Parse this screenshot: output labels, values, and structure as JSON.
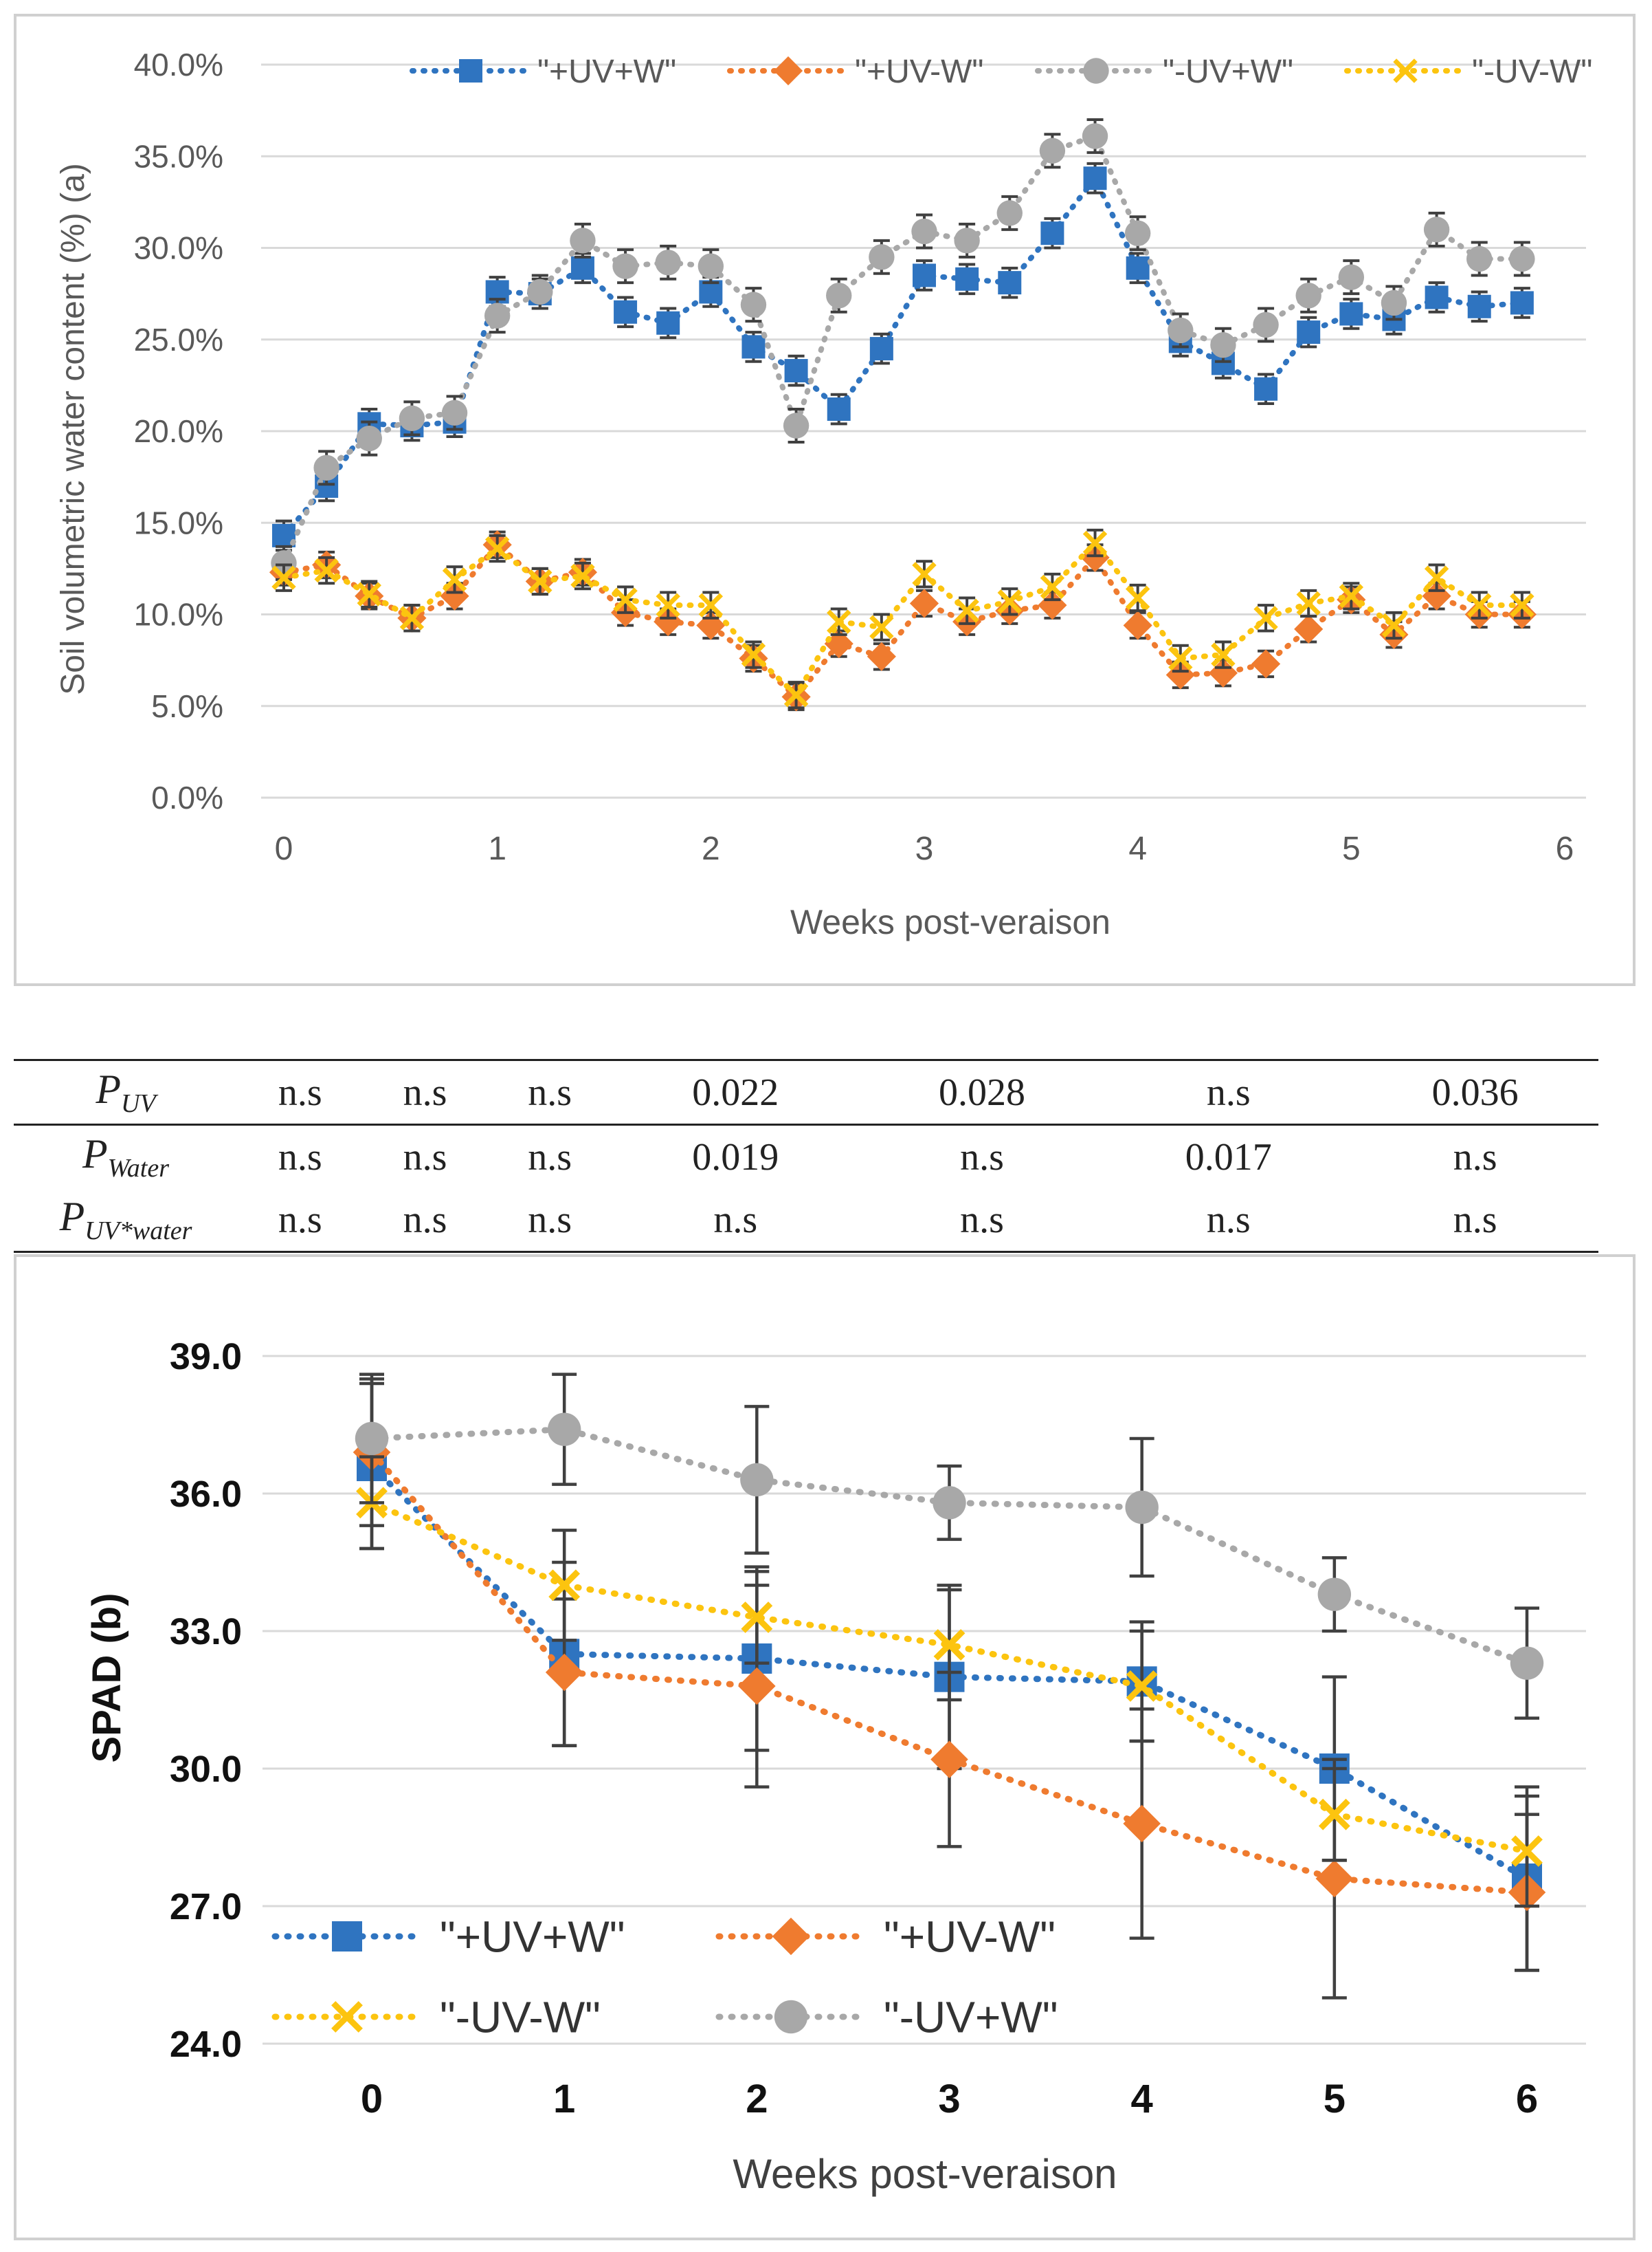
{
  "marker_colors": {
    "+UV+W": "#2f74c0",
    "+UV-W": "#ef7b2f",
    "-UV+W": "#a8a8a8",
    "-UV-W": "#fcc40f"
  },
  "chart_data": [
    {
      "type": "line",
      "title": "",
      "xlabel": "Weeks post-veraison",
      "ylabel": "Soil volumetric water content (%) (a)",
      "xlim": [
        0,
        6
      ],
      "ylim": [
        0,
        40
      ],
      "x_ticks": [
        "0",
        "1",
        "2",
        "3",
        "4",
        "5",
        "6"
      ],
      "y_ticks": [
        "0.0%",
        "5.0%",
        "10.0%",
        "15.0%",
        "20.0%",
        "25.0%",
        "30.0%",
        "35.0%",
        "40.0%"
      ],
      "grid": true,
      "legend": [
        "\"+UV+W\"",
        "\"+UV-W\"",
        "\"-UV+W\"",
        "\"-UV-W\""
      ],
      "legend_position": "top",
      "x": [
        0,
        0.2,
        0.4,
        0.6,
        0.8,
        1.0,
        1.2,
        1.4,
        1.6,
        1.8,
        2.0,
        2.2,
        2.4,
        2.6,
        2.8,
        3.0,
        3.2,
        3.4,
        3.6,
        3.8,
        4.0,
        4.2,
        4.4,
        4.6,
        4.8,
        5.0,
        5.2,
        5.4,
        5.6,
        5.8
      ],
      "series": [
        {
          "name": "+UV+W",
          "marker": "square",
          "values": [
            14.3,
            17.0,
            20.4,
            20.3,
            20.5,
            27.6,
            27.5,
            28.9,
            26.5,
            25.9,
            27.6,
            24.6,
            23.3,
            21.2,
            24.5,
            28.5,
            28.3,
            28.1,
            30.8,
            33.8,
            28.9,
            24.9,
            23.7,
            22.3,
            25.4,
            26.4,
            26.1,
            27.3,
            26.8,
            27.0
          ],
          "err": [
            0.8,
            0.8,
            0.8,
            0.8,
            0.8,
            0.8,
            0.8,
            0.8,
            0.8,
            0.8,
            0.8,
            0.8,
            0.8,
            0.8,
            0.8,
            0.8,
            0.8,
            0.8,
            0.8,
            0.8,
            0.8,
            0.8,
            0.8,
            0.8,
            0.8,
            0.8,
            0.8,
            0.8,
            0.8,
            0.8
          ]
        },
        {
          "name": "+UV-W",
          "marker": "diamond",
          "values": [
            12.3,
            12.7,
            11.0,
            9.8,
            11.0,
            13.8,
            11.8,
            12.3,
            10.1,
            9.6,
            9.4,
            7.6,
            5.5,
            8.4,
            7.7,
            10.6,
            9.6,
            10.2,
            10.5,
            13.1,
            9.4,
            6.7,
            6.8,
            7.3,
            9.2,
            10.8,
            8.9,
            11.0,
            10.0,
            10.0
          ],
          "err": [
            0.7,
            0.7,
            0.7,
            0.7,
            0.7,
            0.7,
            0.7,
            0.7,
            0.7,
            0.7,
            0.7,
            0.7,
            0.7,
            0.7,
            0.7,
            0.7,
            0.7,
            0.7,
            0.7,
            0.7,
            0.7,
            0.7,
            0.7,
            0.7,
            0.7,
            0.7,
            0.7,
            0.7,
            0.7,
            0.7
          ]
        },
        {
          "name": "-UV+W",
          "marker": "circle",
          "values": [
            12.8,
            18.0,
            19.6,
            20.7,
            21.0,
            26.3,
            27.6,
            30.4,
            29.0,
            29.2,
            29.0,
            26.9,
            20.3,
            27.4,
            29.5,
            30.9,
            30.4,
            31.9,
            35.3,
            36.1,
            30.8,
            25.5,
            24.7,
            25.8,
            27.4,
            28.4,
            27.0,
            31.0,
            29.4,
            29.4
          ],
          "err": [
            0.9,
            0.9,
            0.9,
            0.9,
            0.9,
            0.9,
            0.9,
            0.9,
            0.9,
            0.9,
            0.9,
            0.9,
            0.9,
            0.9,
            0.9,
            0.9,
            0.9,
            0.9,
            0.9,
            0.9,
            0.9,
            0.9,
            0.9,
            0.9,
            0.9,
            0.9,
            0.9,
            0.9,
            0.9,
            0.9
          ]
        },
        {
          "name": "-UV-W",
          "marker": "x",
          "values": [
            12.0,
            12.4,
            11.1,
            9.8,
            11.9,
            13.6,
            11.8,
            12.1,
            10.8,
            10.5,
            10.5,
            7.8,
            5.6,
            9.6,
            9.3,
            12.2,
            10.2,
            10.7,
            11.5,
            13.9,
            10.9,
            7.6,
            7.8,
            9.8,
            10.6,
            11.0,
            9.4,
            12.0,
            10.5,
            10.5
          ],
          "err": [
            0.7,
            0.7,
            0.7,
            0.7,
            0.7,
            0.7,
            0.7,
            0.7,
            0.7,
            0.7,
            0.7,
            0.7,
            0.7,
            0.7,
            0.7,
            0.7,
            0.7,
            0.7,
            0.7,
            0.7,
            0.7,
            0.7,
            0.7,
            0.7,
            0.7,
            0.7,
            0.7,
            0.7,
            0.7,
            0.7
          ]
        }
      ]
    },
    {
      "type": "line",
      "title": "",
      "xlabel": "Weeks post-veraison",
      "ylabel": "SPAD (b)",
      "xlim": [
        0,
        6
      ],
      "ylim": [
        24,
        39
      ],
      "x_ticks": [
        "0",
        "1",
        "2",
        "3",
        "4",
        "5",
        "6"
      ],
      "y_ticks": [
        "24.0",
        "27.0",
        "30.0",
        "33.0",
        "36.0",
        "39.0"
      ],
      "grid": true,
      "legend": [
        "\"+UV+W\"",
        "\"+UV-W\"",
        "\"-UV-W\"",
        "\"-UV+W\""
      ],
      "legend_position": "bottom-left",
      "x": [
        0,
        1,
        2,
        3,
        4,
        5,
        6
      ],
      "series": [
        {
          "name": "+UV+W",
          "marker": "square",
          "values": [
            36.6,
            32.5,
            32.4,
            32.0,
            31.9,
            30.0,
            27.6
          ],
          "err": [
            1.8,
            2.0,
            2.0,
            2.0,
            1.3,
            2.0,
            2.0
          ]
        },
        {
          "name": "+UV-W",
          "marker": "diamond",
          "values": [
            36.9,
            32.1,
            31.8,
            30.2,
            28.8,
            27.6,
            27.3
          ],
          "err": [
            1.6,
            1.6,
            2.2,
            1.9,
            2.5,
            2.6,
            1.7
          ]
        },
        {
          "name": "-UV-W",
          "marker": "x",
          "values": [
            35.8,
            34.0,
            33.3,
            32.7,
            31.8,
            29.0,
            28.2
          ],
          "err": [
            1.0,
            1.2,
            1.0,
            1.2,
            1.2,
            1.0,
            1.2
          ]
        },
        {
          "name": "-UV+W",
          "marker": "circle",
          "values": [
            37.2,
            37.4,
            36.3,
            35.8,
            35.7,
            33.8,
            32.3
          ],
          "err": [
            1.4,
            1.2,
            1.6,
            0.8,
            1.5,
            0.8,
            1.2
          ]
        }
      ]
    }
  ],
  "p_table": {
    "rows": [
      {
        "label_main": "P",
        "label_sub": "UV",
        "values": [
          "n.s",
          "n.s",
          "n.s",
          "0.022",
          "0.028",
          "n.s",
          "0.036"
        ]
      },
      {
        "label_main": "P",
        "label_sub": "Water",
        "values": [
          "n.s",
          "n.s",
          "n.s",
          "0.019",
          "n.s",
          "0.017",
          "n.s"
        ]
      },
      {
        "label_main": "P",
        "label_sub": "UV*water",
        "values": [
          "n.s",
          "n.s",
          "n.s",
          "n.s",
          "n.s",
          "n.s",
          "n.s"
        ]
      }
    ]
  }
}
